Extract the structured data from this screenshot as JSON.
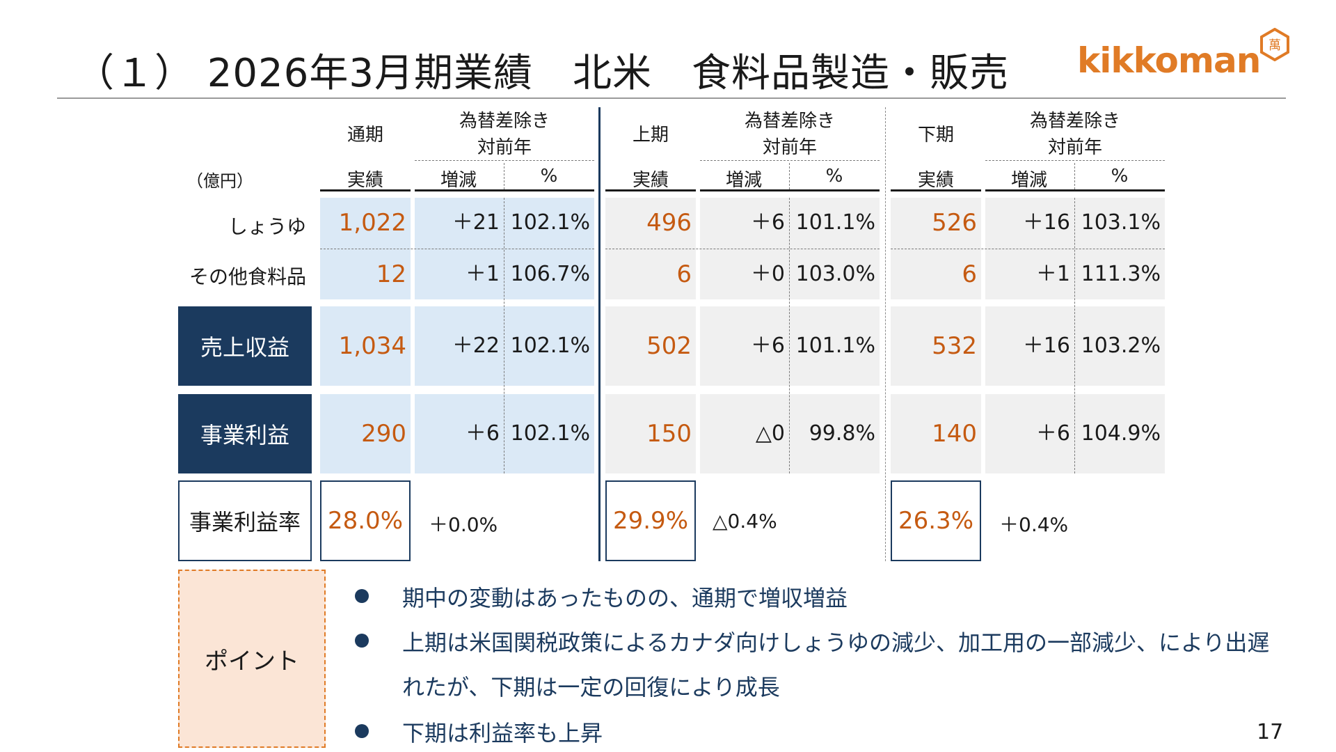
{
  "title": "（１） 2026年3月期業績　北米　食料品製造・販売",
  "logo": {
    "wordmark": "kikkoman",
    "seal": "萬"
  },
  "table": {
    "unit": "（億円）",
    "groups": [
      {
        "period": "通期",
        "yoy_head_1": "為替差除き",
        "yoy_head_2": "対前年"
      },
      {
        "period": "上期",
        "yoy_head_1": "為替差除き",
        "yoy_head_2": "対前年"
      },
      {
        "period": "下期",
        "yoy_head_1": "為替差除き",
        "yoy_head_2": "対前年"
      }
    ],
    "subheaders": {
      "actual": "実績",
      "change": "増減",
      "pct": "%"
    },
    "rows": [
      {
        "label": "しょうゆ",
        "cells": [
          [
            "1,022",
            "＋21",
            "102.1%"
          ],
          [
            "496",
            "＋6",
            "101.1%"
          ],
          [
            "526",
            "＋16",
            "103.1%"
          ]
        ]
      },
      {
        "label": "その他食料品",
        "cells": [
          [
            "12",
            "＋1",
            "106.7%"
          ],
          [
            "6",
            "＋0",
            "103.0%"
          ],
          [
            "6",
            "＋1",
            "111.3%"
          ]
        ]
      },
      {
        "label": "売上収益",
        "cells": [
          [
            "1,034",
            "＋22",
            "102.1%"
          ],
          [
            "502",
            "＋6",
            "101.1%"
          ],
          [
            "532",
            "＋16",
            "103.2%"
          ]
        ]
      },
      {
        "label": "事業利益",
        "cells": [
          [
            "290",
            "＋6",
            "102.1%"
          ],
          [
            "150",
            "△0",
            "99.8%"
          ],
          [
            "140",
            "＋6",
            "104.9%"
          ]
        ]
      }
    ],
    "margin_row": {
      "label": "事業利益率",
      "cells": [
        [
          "28.0%",
          "＋0.0%"
        ],
        [
          "29.9%",
          "△0.4%"
        ],
        [
          "26.3%",
          "＋0.4%"
        ]
      ]
    }
  },
  "point": {
    "label": "ポイント",
    "bullets": [
      "期中の変動はあったものの、通期で増収増益",
      "上期は米国関税政策によるカナダ向けしょうゆの減少、加工用の一部減少、により出遅",
      "れたが、下期は一定の回復により成長",
      "下期は利益率も上昇"
    ]
  },
  "page_number": "17",
  "colors": {
    "navy": "#1b3a5e",
    "orange": "#c55a11",
    "light_blue": "#dbe9f6",
    "light_gray": "#f0f0f0",
    "point_bg": "#fbe5d6",
    "brand_orange": "#e07b26"
  }
}
